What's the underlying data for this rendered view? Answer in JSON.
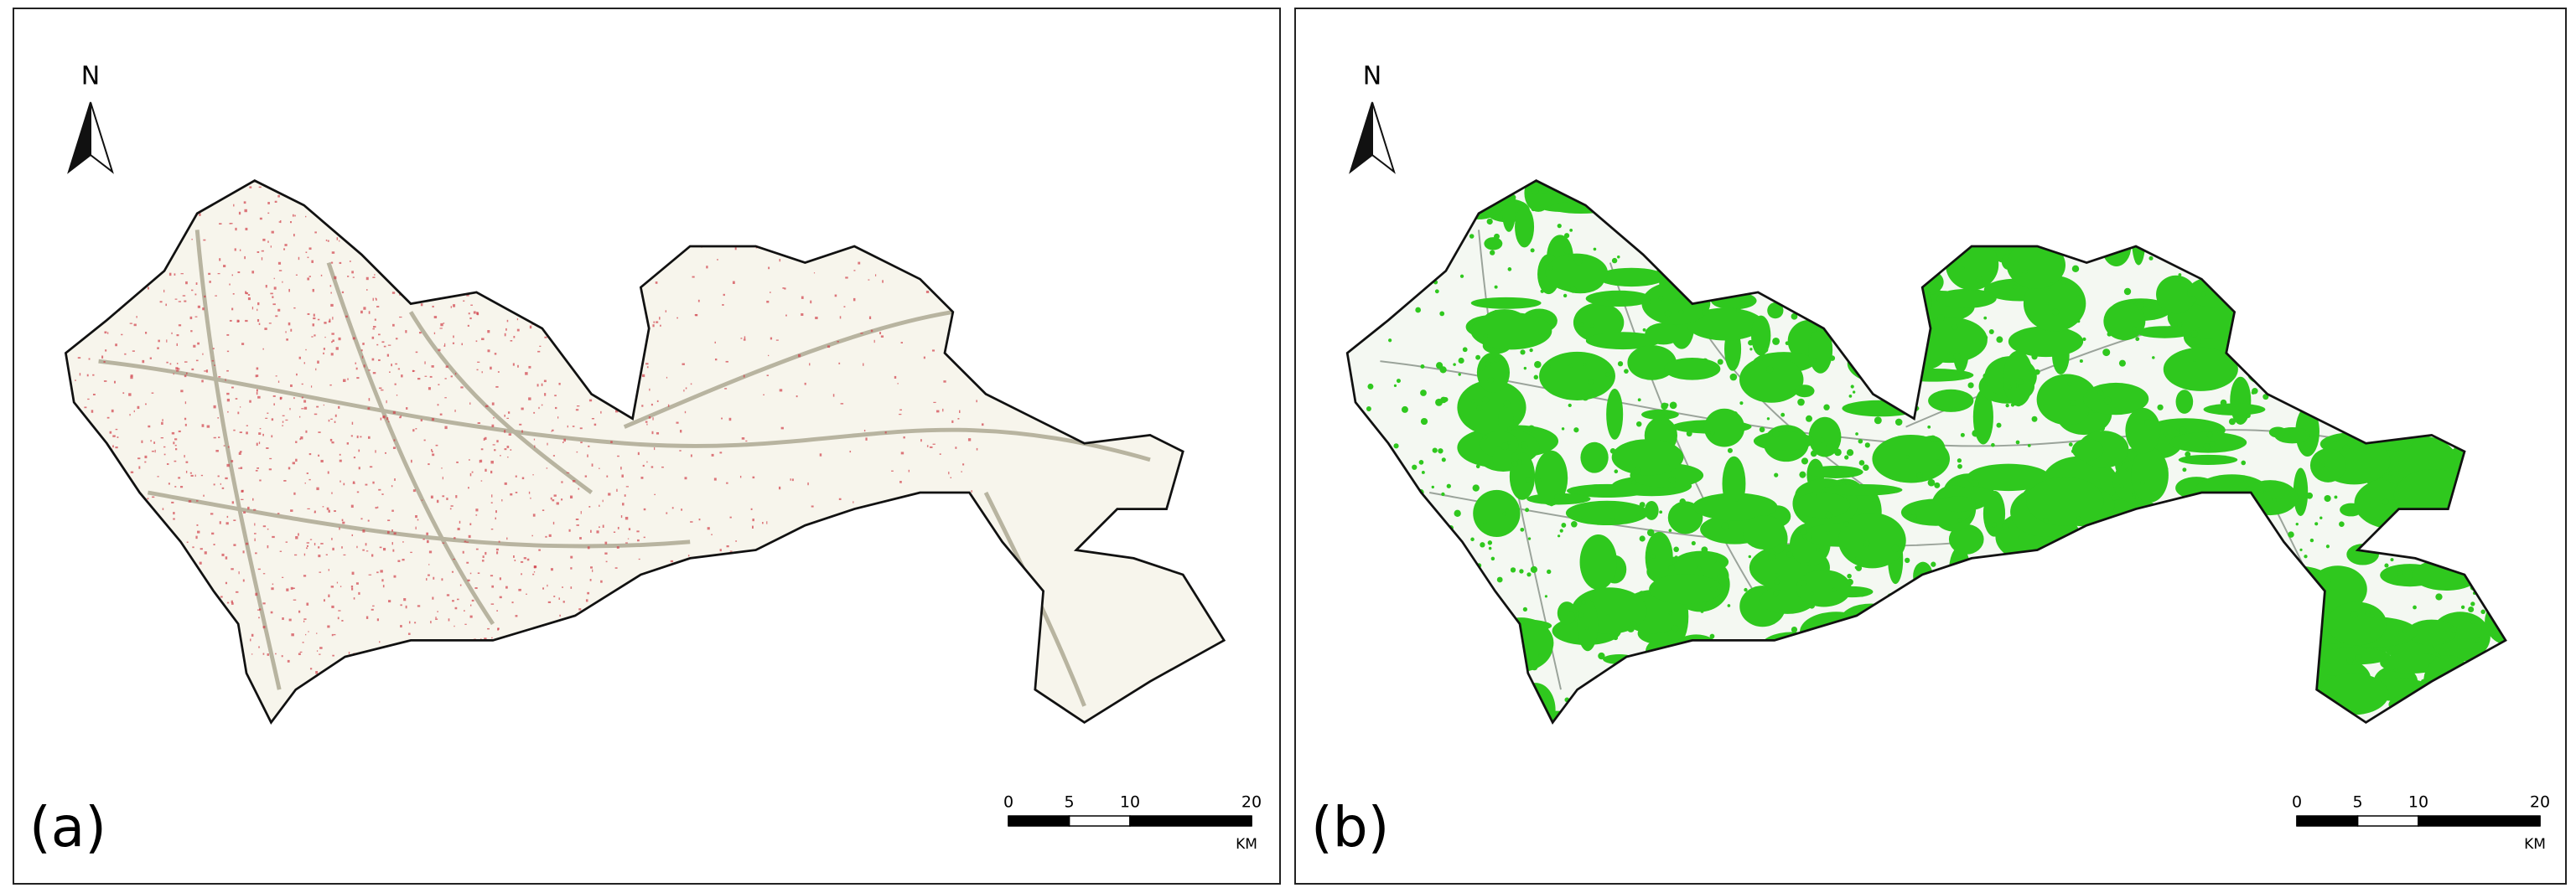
{
  "panels": [
    {
      "label": "(a)",
      "north": "N",
      "scale_bar": {
        "ticks": [
          0,
          5,
          10,
          20
        ],
        "unit": "KM"
      }
    },
    {
      "label": "(b)",
      "north": "N",
      "scale_bar": {
        "ticks": [
          0,
          5,
          10,
          20
        ],
        "unit": "KM"
      }
    }
  ]
}
